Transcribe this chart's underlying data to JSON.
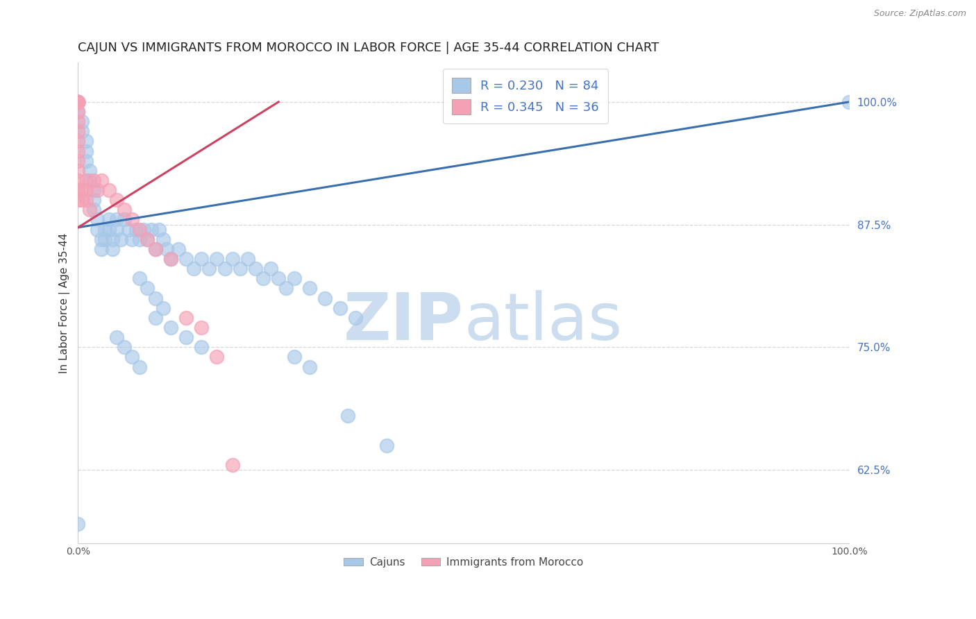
{
  "title": "CAJUN VS IMMIGRANTS FROM MOROCCO IN LABOR FORCE | AGE 35-44 CORRELATION CHART",
  "source": "Source: ZipAtlas.com",
  "ylabel": "In Labor Force | Age 35-44",
  "xlim": [
    0.0,
    1.0
  ],
  "ylim": [
    0.55,
    1.04
  ],
  "right_yticks": [
    0.625,
    0.75,
    0.875,
    1.0
  ],
  "right_yticklabels": [
    "62.5%",
    "75.0%",
    "87.5%",
    "100.0%"
  ],
  "cajun_R": 0.23,
  "cajun_N": 84,
  "morocco_R": 0.345,
  "morocco_N": 36,
  "cajun_color": "#a8c8e8",
  "morocco_color": "#f4a0b5",
  "trend_cajun_color": "#3a6faf",
  "trend_morocco_color": "#d04060",
  "cajun_x": [
    0.0,
    0.0,
    0.0,
    0.0,
    0.0,
    0.0,
    0.0,
    0.0,
    0.0,
    0.0,
    0.005,
    0.005,
    0.01,
    0.01,
    0.01,
    0.015,
    0.015,
    0.02,
    0.02,
    0.02,
    0.025,
    0.025,
    0.03,
    0.03,
    0.035,
    0.035,
    0.04,
    0.04,
    0.045,
    0.045,
    0.05,
    0.05,
    0.055,
    0.06,
    0.065,
    0.07,
    0.075,
    0.08,
    0.085,
    0.09,
    0.095,
    0.1,
    0.105,
    0.11,
    0.115,
    0.12,
    0.13,
    0.14,
    0.15,
    0.16,
    0.17,
    0.18,
    0.19,
    0.2,
    0.21,
    0.22,
    0.23,
    0.24,
    0.25,
    0.26,
    0.27,
    0.28,
    0.3,
    0.32,
    0.34,
    0.36,
    0.1,
    0.12,
    0.14,
    0.16,
    0.08,
    0.09,
    0.1,
    0.11,
    0.28,
    0.3,
    0.05,
    0.06,
    0.07,
    0.08,
    0.35,
    0.4,
    1.0,
    0.0
  ],
  "cajun_y": [
    1.0,
    1.0,
    1.0,
    1.0,
    1.0,
    1.0,
    1.0,
    1.0,
    1.0,
    0.99,
    0.98,
    0.97,
    0.96,
    0.95,
    0.94,
    0.93,
    0.92,
    0.91,
    0.9,
    0.89,
    0.88,
    0.87,
    0.86,
    0.85,
    0.87,
    0.86,
    0.88,
    0.87,
    0.86,
    0.85,
    0.88,
    0.87,
    0.86,
    0.88,
    0.87,
    0.86,
    0.87,
    0.86,
    0.87,
    0.86,
    0.87,
    0.85,
    0.87,
    0.86,
    0.85,
    0.84,
    0.85,
    0.84,
    0.83,
    0.84,
    0.83,
    0.84,
    0.83,
    0.84,
    0.83,
    0.84,
    0.83,
    0.82,
    0.83,
    0.82,
    0.81,
    0.82,
    0.81,
    0.8,
    0.79,
    0.78,
    0.78,
    0.77,
    0.76,
    0.75,
    0.82,
    0.81,
    0.8,
    0.79,
    0.74,
    0.73,
    0.76,
    0.75,
    0.74,
    0.73,
    0.68,
    0.65,
    1.0,
    0.57
  ],
  "morocco_x": [
    0.0,
    0.0,
    0.0,
    0.0,
    0.0,
    0.0,
    0.0,
    0.0,
    0.0,
    0.0,
    0.0,
    0.0,
    0.0,
    0.0,
    0.0,
    0.005,
    0.005,
    0.01,
    0.01,
    0.01,
    0.015,
    0.02,
    0.025,
    0.03,
    0.04,
    0.05,
    0.06,
    0.07,
    0.08,
    0.09,
    0.1,
    0.12,
    0.14,
    0.16,
    0.18,
    0.2
  ],
  "morocco_y": [
    1.0,
    1.0,
    1.0,
    1.0,
    1.0,
    0.99,
    0.98,
    0.97,
    0.96,
    0.95,
    0.94,
    0.93,
    0.92,
    0.91,
    0.9,
    0.91,
    0.9,
    0.92,
    0.91,
    0.9,
    0.89,
    0.92,
    0.91,
    0.92,
    0.91,
    0.9,
    0.89,
    0.88,
    0.87,
    0.86,
    0.85,
    0.84,
    0.78,
    0.77,
    0.74,
    0.63
  ],
  "trend_cajun_x0": 0.0,
  "trend_cajun_y0": 0.872,
  "trend_cajun_x1": 1.0,
  "trend_cajun_y1": 1.0,
  "trend_morocco_x0": 0.0,
  "trend_morocco_y0": 0.872,
  "trend_morocco_x1": 0.26,
  "trend_morocco_y1": 1.0,
  "background_color": "#ffffff",
  "watermark_zip": "ZIP",
  "watermark_atlas": "atlas",
  "watermark_color": "#ccddf0",
  "grid_color": "#cccccc",
  "legend_cajun_label": "R = 0.230   N = 84",
  "legend_morocco_label": "R = 0.345   N = 36",
  "bottom_legend_cajun": "Cajuns",
  "bottom_legend_morocco": "Immigrants from Morocco",
  "title_fontsize": 13,
  "axis_label_fontsize": 11,
  "tick_fontsize": 10,
  "legend_fontsize": 13
}
